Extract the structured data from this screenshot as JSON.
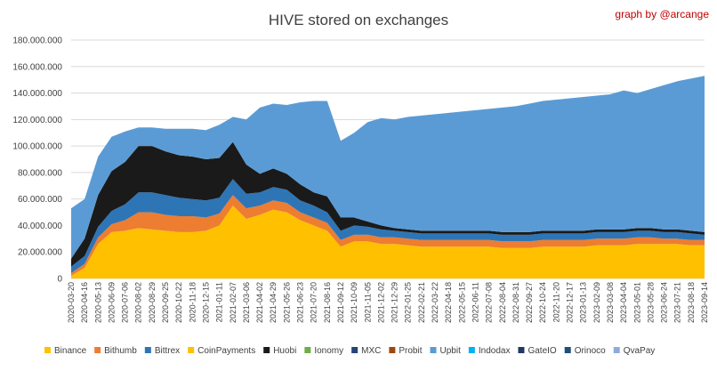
{
  "chart_data": {
    "type": "area",
    "stacked": true,
    "title": "HIVE stored on exchanges",
    "credit": "graph by @arcange",
    "xlabel": "",
    "ylabel": "",
    "ylim": [
      0,
      180000000
    ],
    "yticks": [
      0,
      20000000,
      40000000,
      60000000,
      80000000,
      100000000,
      120000000,
      140000000,
      160000000,
      180000000
    ],
    "ytick_labels": [
      "0",
      "20.000.000",
      "40.000.000",
      "60.000.000",
      "80.000.000",
      "100.000.000",
      "120.000.000",
      "140.000.000",
      "160.000.000",
      "180.000.000"
    ],
    "grid": true,
    "legend_position": "bottom",
    "x": [
      "2020-03-20",
      "2020-04-16",
      "2020-05-13",
      "2020-06-09",
      "2020-07-06",
      "2020-08-02",
      "2020-08-29",
      "2020-09-25",
      "2020-10-22",
      "2020-11-18",
      "2020-12-15",
      "2021-01-11",
      "2021-02-07",
      "2021-03-06",
      "2021-04-02",
      "2021-04-29",
      "2021-05-26",
      "2021-06-23",
      "2021-07-20",
      "2021-08-16",
      "2021-09-12",
      "2021-10-09",
      "2021-11-05",
      "2021-12-02",
      "2021-12-29",
      "2022-01-25",
      "2022-02-21",
      "2022-03-22",
      "2022-04-18",
      "2022-05-15",
      "2022-06-11",
      "2022-07-08",
      "2022-08-04",
      "2022-08-31",
      "2022-09-27",
      "2022-10-24",
      "2022-11-20",
      "2022-12-17",
      "2023-01-13",
      "2023-02-09",
      "2023-03-08",
      "2023-04-04",
      "2023-05-01",
      "2023-05-28",
      "2023-06-24",
      "2023-07-21",
      "2023-08-18",
      "2023-09-14"
    ],
    "series": [
      {
        "name": "Binance",
        "color": "#ffc000",
        "values": [
          2000000,
          8000000,
          26000000,
          35000000,
          36000000,
          38000000,
          37000000,
          36000000,
          35000000,
          35000000,
          36000000,
          40000000,
          55000000,
          45000000,
          48000000,
          52000000,
          50000000,
          44000000,
          40000000,
          36000000,
          24000000,
          28000000,
          28000000,
          26000000,
          26000000,
          25000000,
          24000000,
          24000000,
          24000000,
          24000000,
          24000000,
          24000000,
          23000000,
          23000000,
          23000000,
          24000000,
          24000000,
          24000000,
          24000000,
          25000000,
          25000000,
          25000000,
          26000000,
          26000000,
          26000000,
          26000000,
          25000000,
          25000000
        ]
      },
      {
        "name": "Bithumb",
        "color": "#ed7d31",
        "values": [
          2000000,
          3000000,
          5000000,
          6000000,
          8000000,
          12000000,
          13000000,
          12000000,
          12000000,
          12000000,
          10000000,
          9000000,
          8000000,
          8000000,
          7000000,
          7000000,
          7000000,
          6000000,
          6000000,
          6000000,
          5000000,
          5000000,
          5000000,
          5000000,
          5000000,
          5000000,
          5000000,
          5000000,
          5000000,
          5000000,
          5000000,
          5000000,
          5000000,
          5000000,
          5000000,
          5000000,
          5000000,
          5000000,
          5000000,
          5000000,
          5000000,
          5000000,
          5000000,
          5000000,
          4000000,
          4000000,
          4000000,
          4000000
        ]
      },
      {
        "name": "Bittrex",
        "color": "#2e75b6",
        "values": [
          5000000,
          6000000,
          8000000,
          10000000,
          12000000,
          15000000,
          15000000,
          15000000,
          14000000,
          13000000,
          13000000,
          12000000,
          12000000,
          11000000,
          10000000,
          10000000,
          10000000,
          9000000,
          9000000,
          8000000,
          7000000,
          7000000,
          6000000,
          6000000,
          5000000,
          5000000,
          5000000,
          5000000,
          5000000,
          5000000,
          5000000,
          5000000,
          5000000,
          5000000,
          5000000,
          5000000,
          5000000,
          5000000,
          5000000,
          5000000,
          5000000,
          5000000,
          5000000,
          5000000,
          5000000,
          5000000,
          5000000,
          4000000
        ]
      },
      {
        "name": "CoinPayments",
        "color": "#ffc000",
        "values": [
          0,
          0,
          0,
          0,
          0,
          0,
          0,
          0,
          0,
          0,
          0,
          0,
          0,
          0,
          0,
          0,
          0,
          0,
          0,
          0,
          0,
          0,
          0,
          0,
          0,
          0,
          0,
          0,
          0,
          0,
          0,
          0,
          0,
          0,
          0,
          0,
          0,
          0,
          0,
          0,
          0,
          0,
          0,
          0,
          0,
          0,
          0,
          0
        ]
      },
      {
        "name": "Huobi",
        "color": "#1a1a1a",
        "values": [
          6000000,
          13000000,
          24000000,
          30000000,
          32000000,
          35000000,
          35000000,
          33000000,
          32000000,
          32000000,
          31000000,
          30000000,
          28000000,
          22000000,
          14000000,
          14000000,
          12000000,
          12000000,
          10000000,
          12000000,
          10000000,
          6000000,
          4000000,
          3000000,
          2000000,
          2000000,
          2000000,
          2000000,
          2000000,
          2000000,
          2000000,
          2000000,
          2000000,
          2000000,
          2000000,
          2000000,
          2000000,
          2000000,
          2000000,
          2000000,
          2000000,
          2000000,
          2000000,
          2000000,
          2000000,
          2000000,
          2000000,
          2000000
        ]
      },
      {
        "name": "Ionomy",
        "color": "#70ad47",
        "values": [
          0,
          0,
          0,
          0,
          0,
          0,
          0,
          0,
          0,
          0,
          0,
          0,
          0,
          0,
          0,
          0,
          0,
          0,
          0,
          0,
          0,
          0,
          0,
          0,
          0,
          0,
          0,
          0,
          0,
          0,
          0,
          0,
          0,
          0,
          0,
          0,
          0,
          0,
          0,
          0,
          0,
          0,
          0,
          0,
          0,
          0,
          0,
          0
        ]
      },
      {
        "name": "MXC",
        "color": "#264478",
        "values": [
          0,
          0,
          0,
          0,
          0,
          0,
          0,
          0,
          0,
          0,
          0,
          0,
          0,
          0,
          0,
          0,
          0,
          0,
          0,
          0,
          0,
          0,
          0,
          0,
          0,
          0,
          0,
          0,
          0,
          0,
          0,
          0,
          0,
          0,
          0,
          0,
          0,
          0,
          0,
          0,
          0,
          0,
          0,
          0,
          0,
          0,
          0,
          0
        ]
      },
      {
        "name": "Probit",
        "color": "#9e480e",
        "values": [
          0,
          0,
          0,
          0,
          0,
          0,
          0,
          0,
          0,
          0,
          0,
          0,
          0,
          0,
          0,
          0,
          0,
          0,
          0,
          0,
          0,
          0,
          0,
          0,
          0,
          0,
          0,
          0,
          0,
          0,
          0,
          0,
          0,
          0,
          0,
          0,
          0,
          0,
          0,
          0,
          0,
          0,
          0,
          0,
          0,
          0,
          0,
          0
        ]
      },
      {
        "name": "Upbit",
        "color": "#5b9bd5",
        "values": [
          38000000,
          30000000,
          29000000,
          26000000,
          23000000,
          14000000,
          14000000,
          17000000,
          20000000,
          21000000,
          22000000,
          25000000,
          19000000,
          34000000,
          50000000,
          49000000,
          52000000,
          62000000,
          69000000,
          72000000,
          58000000,
          64000000,
          75000000,
          81000000,
          82000000,
          85000000,
          87000000,
          88000000,
          89000000,
          90000000,
          91000000,
          92000000,
          94000000,
          95000000,
          97000000,
          98000000,
          99000000,
          100000000,
          101000000,
          101000000,
          102000000,
          105000000,
          102000000,
          105000000,
          109000000,
          112000000,
          115000000,
          118000000
        ]
      },
      {
        "name": "Indodax",
        "color": "#00b0f0",
        "values": [
          0,
          0,
          0,
          0,
          0,
          0,
          0,
          0,
          0,
          0,
          0,
          0,
          0,
          0,
          0,
          0,
          0,
          0,
          0,
          0,
          0,
          0,
          0,
          0,
          0,
          0,
          0,
          0,
          0,
          0,
          0,
          0,
          0,
          0,
          0,
          0,
          0,
          0,
          0,
          0,
          0,
          0,
          0,
          0,
          0,
          0,
          0,
          0
        ]
      },
      {
        "name": "GateIO",
        "color": "#203864",
        "values": [
          0,
          0,
          0,
          0,
          0,
          0,
          0,
          0,
          0,
          0,
          0,
          0,
          0,
          0,
          0,
          0,
          0,
          0,
          0,
          0,
          0,
          0,
          0,
          0,
          0,
          0,
          0,
          0,
          0,
          0,
          0,
          0,
          0,
          0,
          0,
          0,
          0,
          0,
          0,
          0,
          0,
          0,
          0,
          0,
          0,
          0,
          0,
          0
        ]
      },
      {
        "name": "Orinoco",
        "color": "#1f4e79",
        "values": [
          0,
          0,
          0,
          0,
          0,
          0,
          0,
          0,
          0,
          0,
          0,
          0,
          0,
          0,
          0,
          0,
          0,
          0,
          0,
          0,
          0,
          0,
          0,
          0,
          0,
          0,
          0,
          0,
          0,
          0,
          0,
          0,
          0,
          0,
          0,
          0,
          0,
          0,
          0,
          0,
          0,
          0,
          0,
          0,
          0,
          0,
          0,
          0
        ]
      },
      {
        "name": "QvaPay",
        "color": "#8faadc",
        "values": [
          0,
          0,
          0,
          0,
          0,
          0,
          0,
          0,
          0,
          0,
          0,
          0,
          0,
          0,
          0,
          0,
          0,
          0,
          0,
          0,
          0,
          0,
          0,
          0,
          0,
          0,
          0,
          0,
          0,
          0,
          0,
          0,
          0,
          0,
          0,
          0,
          0,
          0,
          0,
          0,
          0,
          0,
          0,
          0,
          0,
          0,
          0,
          0
        ]
      }
    ]
  }
}
